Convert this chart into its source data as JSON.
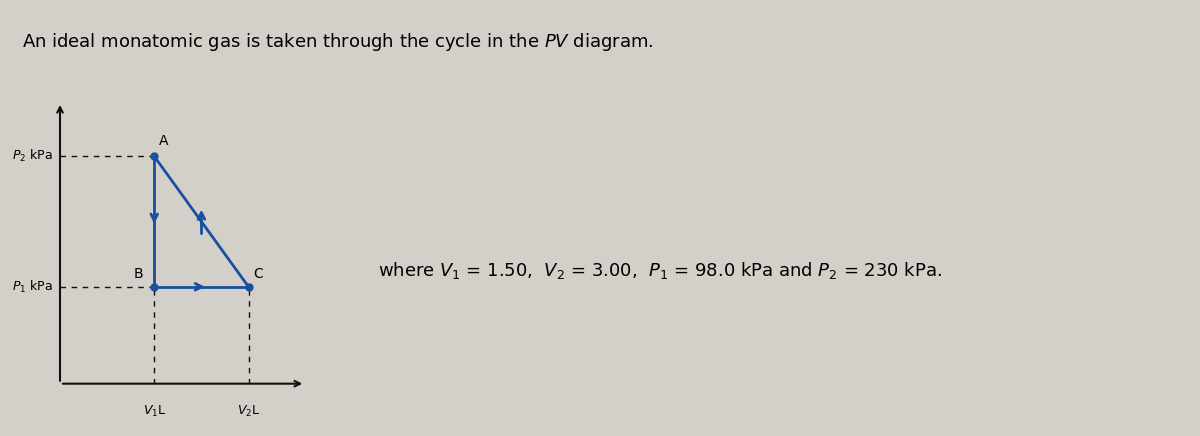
{
  "V1": 1.5,
  "V2": 3.0,
  "P1": 98.0,
  "P2": 230.0,
  "bg_color": "#d3cfc9",
  "line_color": "#1a4fa0",
  "axis_color": "#111111",
  "label_A": "A",
  "label_B": "B",
  "label_C": "C",
  "title_normal": "An ideal monatomic gas is taken through the cycle in the ",
  "title_italic": "PV",
  "title_end": " diagram.",
  "where_text": "where $V_1$ = 1.50,  $V_2$ = 3.00,  $P_1$ = 98.0 kPa and $P_2$ = 230 kPa.",
  "xlabel_V1": "$V_1$L",
  "xlabel_V2": "$V_2$L",
  "ylabel_P1": "$P_1$ kPa",
  "ylabel_P2": "$P_2$ kPa",
  "title_fontsize": 13,
  "label_fontsize": 10,
  "axis_label_fontsize": 9,
  "where_fontsize": 13
}
